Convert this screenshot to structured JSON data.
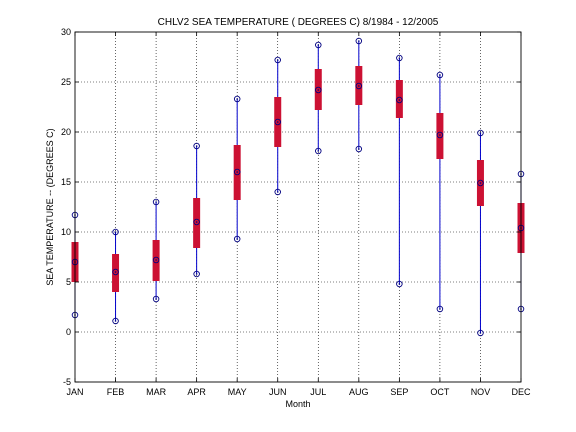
{
  "chart_data": {
    "type": "box",
    "title": "CHLV2  SEA TEMPERATURE ( DEGREES C) 8/1984 - 12/2005",
    "xlabel": "Month",
    "ylabel": "SEA TEMPERATURE -- (DEGREES C)",
    "ylim": [
      -5,
      30
    ],
    "yticks": [
      -5,
      0,
      5,
      10,
      15,
      20,
      25,
      30
    ],
    "grid": true,
    "categories": [
      "JAN",
      "FEB",
      "MAR",
      "APR",
      "MAY",
      "JUN",
      "JUL",
      "AUG",
      "SEP",
      "OCT",
      "NOV",
      "DEC"
    ],
    "min": [
      1.7,
      1.1,
      3.3,
      5.8,
      9.3,
      14.0,
      18.1,
      18.3,
      4.8,
      2.3,
      -0.1,
      2.3
    ],
    "q1": [
      5.0,
      4.0,
      5.1,
      8.4,
      13.2,
      18.5,
      22.2,
      22.7,
      21.4,
      17.3,
      12.6,
      7.9
    ],
    "median": [
      7.0,
      6.0,
      7.2,
      11.0,
      16.0,
      21.0,
      24.2,
      24.6,
      23.2,
      19.7,
      14.9,
      10.4
    ],
    "q3": [
      9.0,
      7.8,
      9.2,
      13.4,
      18.7,
      23.5,
      26.3,
      26.6,
      25.2,
      21.9,
      17.2,
      12.9
    ],
    "max": [
      11.7,
      10.0,
      13.0,
      18.6,
      23.3,
      27.2,
      28.7,
      29.1,
      27.4,
      25.7,
      19.9,
      15.8
    ],
    "colors": {
      "box": "#cc1133",
      "whisker": "#0000cc",
      "marker": "#000080"
    }
  }
}
